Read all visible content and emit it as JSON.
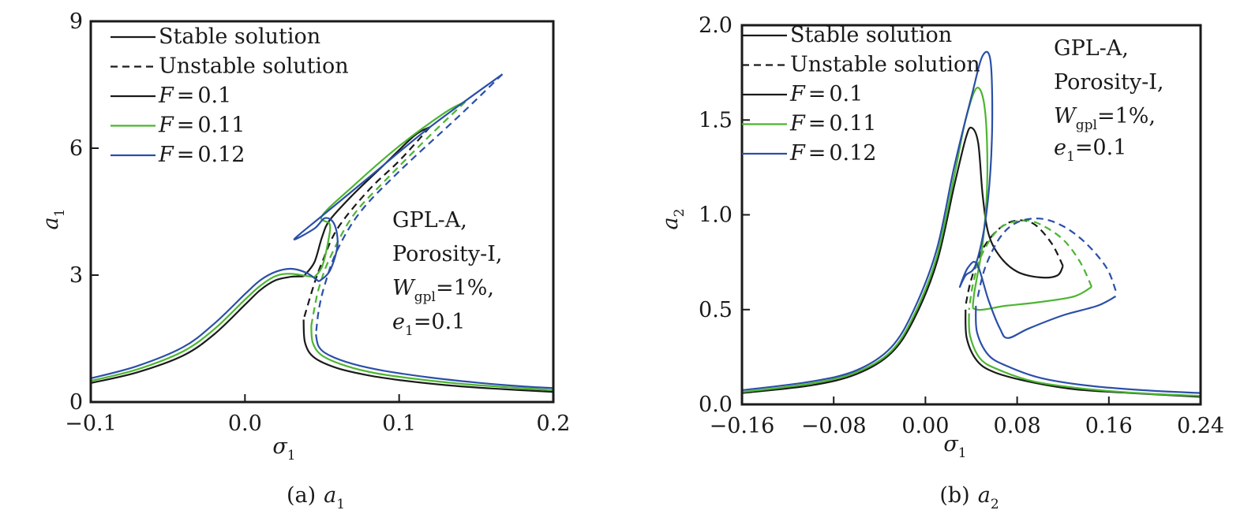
{
  "chart_data": [
    {
      "id": "a",
      "type": "line",
      "caption": "(a)",
      "caption_var": "a",
      "caption_sub": "1",
      "xlabel": "σ",
      "xlabel_sub": "1",
      "ylabel": "a",
      "ylabel_sub": "1",
      "xlim": [
        -0.1,
        0.2
      ],
      "ylim": [
        0,
        9
      ],
      "xticks": [
        -0.1,
        0.0,
        0.1,
        0.2
      ],
      "xtick_labels": [
        "−0.1",
        "0.0",
        "0.1",
        "0.2"
      ],
      "yticks": [
        0,
        3,
        6,
        9
      ],
      "ytick_labels": [
        "0",
        "3",
        "6",
        "9"
      ],
      "legend": {
        "position": "top-left",
        "entries": [
          {
            "label": "Stable solution",
            "style": "solid",
            "color": "#1a1a1a"
          },
          {
            "label": "Unstable solution",
            "style": "dashed",
            "color": "#1a1a1a"
          },
          {
            "label_var": "F",
            "label_eq": "=",
            "label_val": "0.1",
            "style": "solid",
            "color": "#1a1a1a"
          },
          {
            "label_var": "F",
            "label_eq": "=",
            "label_val": "0.11",
            "style": "solid",
            "color": "#4cb530"
          },
          {
            "label_var": "F",
            "label_eq": "=",
            "label_val": "0.12",
            "style": "solid",
            "color": "#2b4fa8"
          }
        ]
      },
      "annotation": {
        "line1": "GPL-A,",
        "line2": "Porosity-I,",
        "line3_var": "W",
        "line3_sub": "gpl",
        "line3_rest": "=1%,",
        "line4_var": "e",
        "line4_sub": "1",
        "line4_rest": "=0.1"
      },
      "series": [
        {
          "name": "F=0.1",
          "color": "#1a1a1a",
          "stable_lower": [
            [
              -0.1,
              0.45
            ],
            [
              -0.07,
              0.7
            ],
            [
              -0.04,
              1.1
            ],
            [
              -0.02,
              1.6
            ],
            [
              0.0,
              2.3
            ],
            [
              0.01,
              2.65
            ],
            [
              0.02,
              2.88
            ],
            [
              0.03,
              2.96
            ],
            [
              0.038,
              2.97
            ]
          ],
          "stable_upper": [
            [
              0.038,
              2.97
            ],
            [
              0.045,
              3.3
            ],
            [
              0.05,
              3.9
            ],
            [
              0.055,
              4.3
            ],
            [
              0.07,
              4.9
            ],
            [
              0.09,
              5.6
            ],
            [
              0.11,
              6.3
            ],
            [
              0.12,
              6.5
            ]
          ],
          "unstable": [
            [
              0.12,
              6.5
            ],
            [
              0.1,
              5.7
            ],
            [
              0.08,
              5.0
            ],
            [
              0.06,
              4.1
            ],
            [
              0.05,
              3.3
            ],
            [
              0.045,
              2.8
            ],
            [
              0.04,
              2.2
            ],
            [
              0.038,
              1.95
            ]
          ],
          "stable_right": [
            [
              0.038,
              1.95
            ],
            [
              0.039,
              1.4
            ],
            [
              0.045,
              1.05
            ],
            [
              0.06,
              0.8
            ],
            [
              0.08,
              0.63
            ],
            [
              0.1,
              0.52
            ],
            [
              0.13,
              0.4
            ],
            [
              0.16,
              0.32
            ],
            [
              0.2,
              0.24
            ]
          ]
        },
        {
          "name": "F=0.11",
          "color": "#4cb530",
          "stable_lower": [
            [
              -0.1,
              0.5
            ],
            [
              -0.07,
              0.77
            ],
            [
              -0.04,
              1.2
            ],
            [
              -0.02,
              1.72
            ],
            [
              0.0,
              2.42
            ],
            [
              0.01,
              2.75
            ],
            [
              0.02,
              2.98
            ],
            [
              0.03,
              3.03
            ],
            [
              0.045,
              2.95
            ]
          ],
          "stable_upper": [
            [
              0.045,
              2.95
            ],
            [
              0.05,
              3.2
            ],
            [
              0.054,
              3.8
            ],
            [
              0.055,
              4.2
            ],
            [
              0.05,
              4.4
            ],
            [
              0.07,
              5.1
            ],
            [
              0.1,
              6.05
            ],
            [
              0.13,
              6.85
            ],
            [
              0.143,
              7.1
            ]
          ],
          "unstable": [
            [
              0.143,
              7.1
            ],
            [
              0.12,
              6.3
            ],
            [
              0.09,
              5.2
            ],
            [
              0.07,
              4.4
            ],
            [
              0.055,
              3.4
            ],
            [
              0.048,
              2.7
            ],
            [
              0.045,
              2.2
            ],
            [
              0.043,
              1.8
            ]
          ],
          "stable_right": [
            [
              0.043,
              1.8
            ],
            [
              0.044,
              1.4
            ],
            [
              0.05,
              1.1
            ],
            [
              0.065,
              0.86
            ],
            [
              0.085,
              0.68
            ],
            [
              0.11,
              0.55
            ],
            [
              0.14,
              0.43
            ],
            [
              0.17,
              0.35
            ],
            [
              0.2,
              0.28
            ]
          ]
        },
        {
          "name": "F=0.12",
          "color": "#2b4fa8",
          "stable_lower": [
            [
              -0.1,
              0.56
            ],
            [
              -0.07,
              0.85
            ],
            [
              -0.04,
              1.3
            ],
            [
              -0.02,
              1.85
            ],
            [
              0.0,
              2.55
            ],
            [
              0.01,
              2.88
            ],
            [
              0.02,
              3.08
            ],
            [
              0.03,
              3.15
            ],
            [
              0.04,
              3.05
            ],
            [
              0.048,
              2.85
            ]
          ],
          "stable_upper": [
            [
              0.048,
              2.85
            ],
            [
              0.055,
              3.1
            ],
            [
              0.06,
              3.7
            ],
            [
              0.058,
              4.2
            ],
            [
              0.052,
              4.35
            ],
            [
              0.045,
              4.1
            ],
            [
              0.032,
              3.85
            ],
            [
              0.05,
              4.4
            ],
            [
              0.08,
              5.3
            ],
            [
              0.12,
              6.5
            ],
            [
              0.167,
              7.75
            ]
          ],
          "unstable": [
            [
              0.167,
              7.75
            ],
            [
              0.14,
              6.8
            ],
            [
              0.1,
              5.45
            ],
            [
              0.075,
              4.5
            ],
            [
              0.06,
              3.6
            ],
            [
              0.052,
              2.8
            ],
            [
              0.048,
              2.2
            ],
            [
              0.046,
              1.6
            ]
          ],
          "stable_right": [
            [
              0.046,
              1.6
            ],
            [
              0.048,
              1.3
            ],
            [
              0.055,
              1.1
            ],
            [
              0.07,
              0.9
            ],
            [
              0.09,
              0.74
            ],
            [
              0.12,
              0.58
            ],
            [
              0.15,
              0.46
            ],
            [
              0.18,
              0.37
            ],
            [
              0.2,
              0.33
            ]
          ]
        }
      ]
    },
    {
      "id": "b",
      "type": "line",
      "caption": "(b)",
      "caption_var": "a",
      "caption_sub": "2",
      "xlabel": "σ",
      "xlabel_sub": "1",
      "ylabel": "a",
      "ylabel_sub": "2",
      "xlim": [
        -0.16,
        0.24
      ],
      "ylim": [
        0,
        2.0
      ],
      "xticks": [
        -0.16,
        -0.08,
        0.0,
        0.08,
        0.16,
        0.24
      ],
      "xtick_labels": [
        "−0.16",
        "−0.08",
        "0.00",
        "0.08",
        "0.16",
        "0.24"
      ],
      "yticks": [
        0,
        0.5,
        1.0,
        1.5,
        2.0
      ],
      "ytick_labels": [
        "0.0",
        "0.5",
        "1.0",
        "1.5",
        "2.0"
      ],
      "legend": {
        "position": "top-left",
        "entries": [
          {
            "label": "Stable solution",
            "style": "solid",
            "color": "#1a1a1a"
          },
          {
            "label": "Unstable solution",
            "style": "dashed",
            "color": "#1a1a1a"
          },
          {
            "label_var": "F",
            "label_eq": "=",
            "label_val": "0.1",
            "style": "solid",
            "color": "#1a1a1a"
          },
          {
            "label_var": "F",
            "label_eq": "=",
            "label_val": "0.11",
            "style": "solid",
            "color": "#4cb530"
          },
          {
            "label_var": "F",
            "label_eq": "=",
            "label_val": "0.12",
            "style": "solid",
            "color": "#2b4fa8"
          }
        ]
      },
      "annotation": {
        "line1": "GPL-A,",
        "line2": "Porosity-I,",
        "line3_var": "W",
        "line3_sub": "gpl",
        "line3_rest": "=1%,",
        "line4_var": "e",
        "line4_sub": "1",
        "line4_rest": "=0.1"
      },
      "series": [
        {
          "name": "F=0.1",
          "color": "#1a1a1a",
          "stable_main": [
            [
              -0.16,
              0.06
            ],
            [
              -0.1,
              0.1
            ],
            [
              -0.06,
              0.16
            ],
            [
              -0.03,
              0.27
            ],
            [
              -0.01,
              0.45
            ],
            [
              0.01,
              0.75
            ],
            [
              0.025,
              1.15
            ],
            [
              0.035,
              1.4
            ],
            [
              0.04,
              1.46
            ],
            [
              0.046,
              1.38
            ],
            [
              0.05,
              1.1
            ],
            [
              0.055,
              0.9
            ],
            [
              0.065,
              0.78
            ],
            [
              0.08,
              0.7
            ],
            [
              0.1,
              0.67
            ],
            [
              0.115,
              0.68
            ],
            [
              0.12,
              0.73
            ]
          ],
          "unstable": [
            [
              0.12,
              0.73
            ],
            [
              0.11,
              0.85
            ],
            [
              0.095,
              0.95
            ],
            [
              0.08,
              0.97
            ],
            [
              0.065,
              0.93
            ],
            [
              0.05,
              0.82
            ],
            [
              0.04,
              0.66
            ],
            [
              0.035,
              0.52
            ]
          ],
          "stable_right": [
            [
              0.035,
              0.5
            ],
            [
              0.036,
              0.35
            ],
            [
              0.045,
              0.23
            ],
            [
              0.06,
              0.17
            ],
            [
              0.09,
              0.12
            ],
            [
              0.13,
              0.08
            ],
            [
              0.18,
              0.06
            ],
            [
              0.24,
              0.04
            ]
          ]
        },
        {
          "name": "F=0.11",
          "color": "#4cb530",
          "stable_main": [
            [
              -0.16,
              0.065
            ],
            [
              -0.1,
              0.11
            ],
            [
              -0.06,
              0.17
            ],
            [
              -0.03,
              0.28
            ],
            [
              -0.01,
              0.47
            ],
            [
              0.01,
              0.78
            ],
            [
              0.025,
              1.2
            ],
            [
              0.035,
              1.5
            ],
            [
              0.045,
              1.67
            ],
            [
              0.052,
              1.55
            ],
            [
              0.054,
              1.2
            ],
            [
              0.05,
              0.85
            ],
            [
              0.042,
              0.56
            ],
            [
              0.045,
              0.5
            ],
            [
              0.07,
              0.52
            ],
            [
              0.1,
              0.54
            ],
            [
              0.13,
              0.57
            ],
            [
              0.145,
              0.62
            ]
          ],
          "unstable": [
            [
              0.145,
              0.62
            ],
            [
              0.135,
              0.75
            ],
            [
              0.12,
              0.87
            ],
            [
              0.1,
              0.95
            ],
            [
              0.085,
              0.97
            ],
            [
              0.065,
              0.93
            ],
            [
              0.05,
              0.8
            ],
            [
              0.042,
              0.65
            ],
            [
              0.038,
              0.5
            ]
          ],
          "stable_right": [
            [
              0.038,
              0.48
            ],
            [
              0.039,
              0.36
            ],
            [
              0.048,
              0.24
            ],
            [
              0.065,
              0.18
            ],
            [
              0.095,
              0.12
            ],
            [
              0.135,
              0.085
            ],
            [
              0.185,
              0.06
            ],
            [
              0.24,
              0.045
            ]
          ]
        },
        {
          "name": "F=0.12",
          "color": "#2b4fa8",
          "stable_main": [
            [
              -0.16,
              0.075
            ],
            [
              -0.1,
              0.12
            ],
            [
              -0.06,
              0.18
            ],
            [
              -0.03,
              0.3
            ],
            [
              -0.01,
              0.5
            ],
            [
              0.01,
              0.82
            ],
            [
              0.025,
              1.25
            ],
            [
              0.04,
              1.62
            ],
            [
              0.05,
              1.84
            ],
            [
              0.057,
              1.8
            ],
            [
              0.058,
              1.4
            ],
            [
              0.053,
              1.0
            ],
            [
              0.044,
              0.74
            ],
            [
              0.035,
              0.68
            ],
            [
              0.03,
              0.62
            ],
            [
              0.037,
              0.72
            ],
            [
              0.045,
              0.74
            ],
            [
              0.055,
              0.55
            ],
            [
              0.065,
              0.4
            ],
            [
              0.072,
              0.35
            ],
            [
              0.09,
              0.4
            ],
            [
              0.12,
              0.47
            ],
            [
              0.15,
              0.52
            ],
            [
              0.166,
              0.57
            ]
          ],
          "unstable": [
            [
              0.166,
              0.6
            ],
            [
              0.158,
              0.72
            ],
            [
              0.14,
              0.85
            ],
            [
              0.12,
              0.94
            ],
            [
              0.1,
              0.98
            ],
            [
              0.08,
              0.96
            ],
            [
              0.065,
              0.88
            ],
            [
              0.052,
              0.72
            ],
            [
              0.045,
              0.55
            ]
          ],
          "stable_right": [
            [
              0.044,
              0.52
            ],
            [
              0.045,
              0.38
            ],
            [
              0.055,
              0.26
            ],
            [
              0.072,
              0.2
            ],
            [
              0.1,
              0.14
            ],
            [
              0.14,
              0.1
            ],
            [
              0.19,
              0.075
            ],
            [
              0.24,
              0.06
            ]
          ]
        }
      ]
    }
  ]
}
